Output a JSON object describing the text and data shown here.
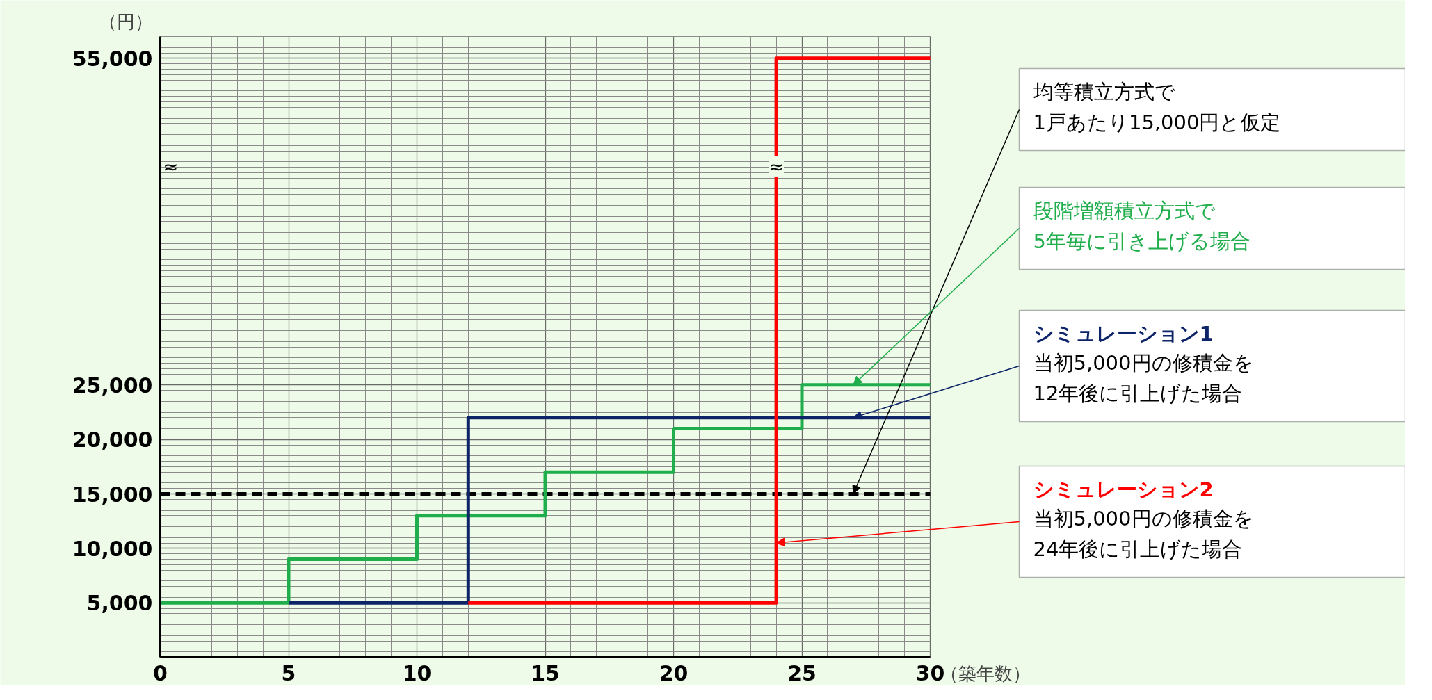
{
  "chart_data": {
    "type": "step",
    "xlabel": "（築年数）",
    "ylabel": "（円）",
    "xlim": [
      0,
      30
    ],
    "ylim": [
      0,
      57000
    ],
    "xticks": [
      0,
      5,
      10,
      15,
      20,
      25,
      30
    ],
    "yticks": [
      {
        "value": 5000,
        "label": "5,000"
      },
      {
        "value": 10000,
        "label": "10,000"
      },
      {
        "value": 15000,
        "label": "15,000"
      },
      {
        "value": 20000,
        "label": "20,000"
      },
      {
        "value": 25000,
        "label": "25,000"
      },
      {
        "value": 55000,
        "label": "55,000"
      }
    ],
    "grid": true,
    "ref_lines": [
      {
        "axis": "y",
        "value": 15000,
        "label": "均等積立方式で\n1戸あたり15,000円と仮定",
        "color": "#000000",
        "line_style": "dashed"
      }
    ],
    "series": [
      {
        "name": "段階増額積立方式で\n5年毎に引き上げる場合",
        "color": "#1fae4b",
        "x": [
          0,
          5,
          10,
          15,
          20,
          25,
          30
        ],
        "values": [
          5000,
          9000,
          13000,
          17000,
          21000,
          25000,
          25000
        ]
      },
      {
        "name": "シミュレーション1",
        "color": "#0d2468",
        "x": [
          5,
          12,
          30
        ],
        "values": [
          5000,
          22000,
          22000
        ]
      },
      {
        "name": "シミュレーション2",
        "color": "#ff0000",
        "x": [
          12,
          24,
          30
        ],
        "values": [
          5000,
          55000,
          55000
        ]
      }
    ],
    "annotations": [
      "≈",
      "≈",
      {
        "text": "当初5,000円の修積金を\n12年後に引上げた場合",
        "x": 27,
        "y": 22000
      },
      {
        "text": "当初5,000円の修積金を\n24年後に引上げた場合",
        "x": 24,
        "y": 10500
      }
    ]
  }
}
